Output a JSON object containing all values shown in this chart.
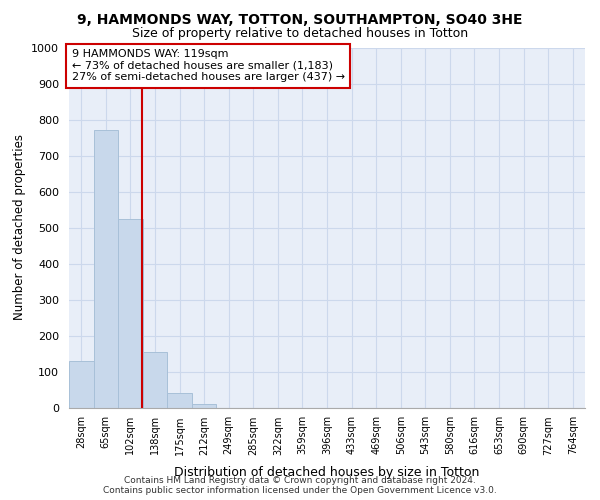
{
  "title_line1": "9, HAMMONDS WAY, TOTTON, SOUTHAMPTON, SO40 3HE",
  "title_line2": "Size of property relative to detached houses in Totton",
  "xlabel": "Distribution of detached houses by size in Totton",
  "ylabel": "Number of detached properties",
  "bar_labels": [
    "28sqm",
    "65sqm",
    "102sqm",
    "138sqm",
    "175sqm",
    "212sqm",
    "249sqm",
    "285sqm",
    "322sqm",
    "359sqm",
    "396sqm",
    "433sqm",
    "469sqm",
    "506sqm",
    "543sqm",
    "580sqm",
    "616sqm",
    "653sqm",
    "690sqm",
    "727sqm",
    "764sqm"
  ],
  "bar_values": [
    130,
    770,
    525,
    155,
    40,
    10,
    0,
    0,
    0,
    0,
    0,
    0,
    0,
    0,
    0,
    0,
    0,
    0,
    0,
    0,
    0
  ],
  "bar_color": "#c8d8eb",
  "bar_edge_color": "#a8c0d8",
  "property_line_color": "#cc0000",
  "annotation_line1": "9 HAMMONDS WAY: 119sqm",
  "annotation_line2": "← 73% of detached houses are smaller (1,183)",
  "annotation_line3": "27% of semi-detached houses are larger (437) →",
  "annotation_box_color": "#ffffff",
  "annotation_box_edge_color": "#cc0000",
  "ylim": [
    0,
    1000
  ],
  "yticks": [
    0,
    100,
    200,
    300,
    400,
    500,
    600,
    700,
    800,
    900,
    1000
  ],
  "grid_color": "#ccd8ec",
  "background_color": "#e8eef8",
  "footer_line1": "Contains HM Land Registry data © Crown copyright and database right 2024.",
  "footer_line2": "Contains public sector information licensed under the Open Government Licence v3.0."
}
